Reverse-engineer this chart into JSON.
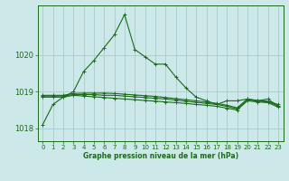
{
  "background_color": "#cce8e8",
  "grid_color": "#aacccc",
  "line_color": "#1a6b1a",
  "title": "Graphe pression niveau de la mer (hPa)",
  "xlim": [
    -0.5,
    23.5
  ],
  "ylim": [
    1017.65,
    1021.35
  ],
  "yticks": [
    1018,
    1019,
    1020
  ],
  "xticks": [
    0,
    1,
    2,
    3,
    4,
    5,
    6,
    7,
    8,
    9,
    10,
    11,
    12,
    13,
    14,
    15,
    16,
    17,
    18,
    19,
    20,
    21,
    22,
    23
  ],
  "series": [
    [
      1018.1,
      1018.65,
      1018.85,
      1019.0,
      1019.55,
      1019.85,
      1020.2,
      1020.55,
      1021.1,
      1020.15,
      1019.95,
      1019.75,
      1019.75,
      1019.4,
      1019.1,
      1018.85,
      1018.75,
      1018.65,
      1018.75,
      1018.75,
      1018.8,
      1018.75,
      1018.8,
      1018.6
    ],
    [
      1018.85,
      1018.85,
      1018.85,
      1018.9,
      1018.88,
      1018.86,
      1018.84,
      1018.82,
      1018.8,
      1018.78,
      1018.76,
      1018.74,
      1018.72,
      1018.7,
      1018.68,
      1018.65,
      1018.63,
      1018.6,
      1018.55,
      1018.5,
      1018.75,
      1018.72,
      1018.7,
      1018.58
    ],
    [
      1018.88,
      1018.88,
      1018.88,
      1018.92,
      1018.92,
      1018.92,
      1018.9,
      1018.9,
      1018.88,
      1018.86,
      1018.84,
      1018.82,
      1018.8,
      1018.77,
      1018.74,
      1018.71,
      1018.68,
      1018.65,
      1018.6,
      1018.53,
      1018.78,
      1018.74,
      1018.72,
      1018.62
    ],
    [
      1018.9,
      1018.9,
      1018.9,
      1018.95,
      1018.96,
      1018.96,
      1018.96,
      1018.95,
      1018.93,
      1018.91,
      1018.89,
      1018.87,
      1018.84,
      1018.81,
      1018.78,
      1018.75,
      1018.72,
      1018.68,
      1018.63,
      1018.56,
      1018.8,
      1018.76,
      1018.74,
      1018.65
    ]
  ]
}
